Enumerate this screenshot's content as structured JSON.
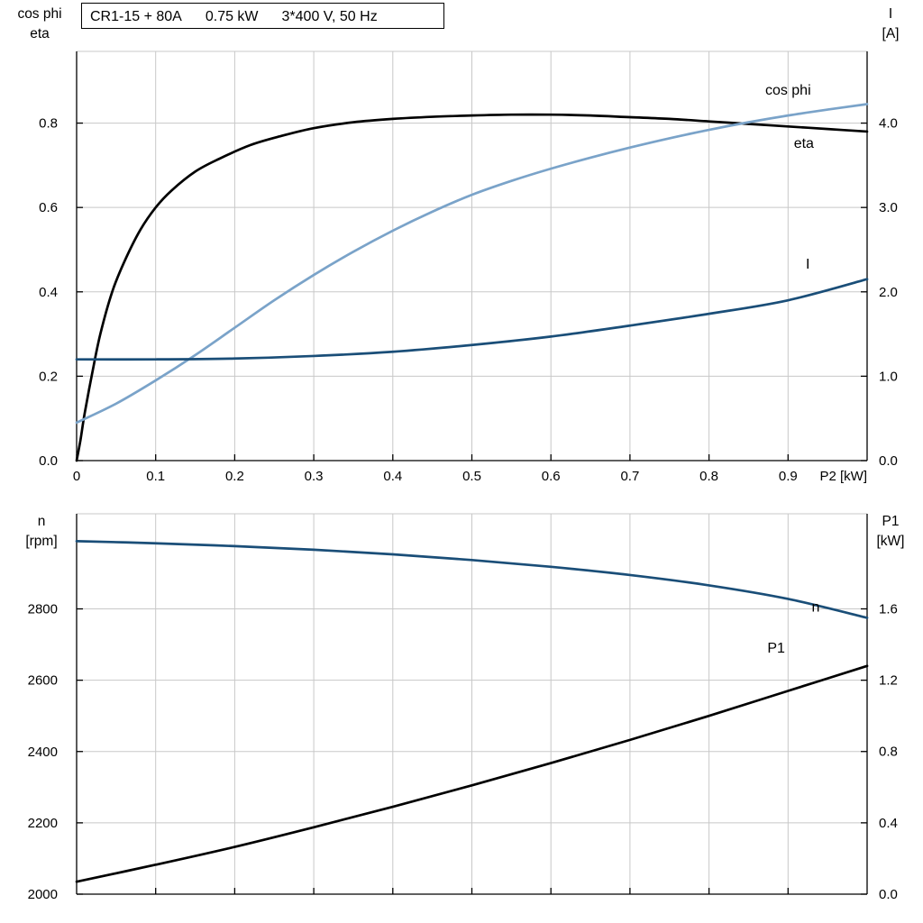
{
  "page": {
    "background": "#ffffff"
  },
  "colors": {
    "grid": "#c8c8c8",
    "axis": "#000000",
    "frame_top": "#c8c8c8",
    "cos_phi_blue": "#7aa3c9",
    "dark_blue": "#1a4e78",
    "black_curve": "#000000"
  },
  "chart_data": [
    {
      "type": "line",
      "title_parts": [
        "CR1-15 + 80A",
        "0.75 kW",
        "3*400 V, 50 Hz"
      ],
      "x_axis": {
        "label": "P2 [kW]",
        "range": [
          0,
          1
        ],
        "ticks": [
          0,
          0.1,
          0.2,
          0.3,
          0.4,
          0.5,
          0.6,
          0.7,
          0.8,
          0.9
        ],
        "tick_labels": [
          "0",
          "0.1",
          "0.2",
          "0.3",
          "0.4",
          "0.5",
          "0.6",
          "0.7",
          "0.8",
          "0.9"
        ]
      },
      "y_left": {
        "title_lines": [
          "cos phi",
          "eta"
        ],
        "range": [
          0,
          0.97
        ],
        "ticks": [
          0,
          0.2,
          0.4,
          0.6,
          0.8
        ],
        "tick_labels": [
          "0.0",
          "0.2",
          "0.4",
          "0.6",
          "0.8"
        ]
      },
      "y_right": {
        "title_lines": [
          "I",
          "[A]"
        ],
        "range": [
          0,
          4.85
        ],
        "ticks": [
          0,
          1,
          2,
          3,
          4
        ],
        "tick_labels": [
          "0.0",
          "1.0",
          "2.0",
          "3.0",
          "4.0"
        ]
      },
      "series": [
        {
          "name": "eta",
          "axis": "left",
          "color": "#000000",
          "width": 2.7,
          "label": "eta",
          "label_at": [
            0.92,
            0.752
          ],
          "points": [
            [
              0,
              0
            ],
            [
              0.005,
              0.05
            ],
            [
              0.01,
              0.11
            ],
            [
              0.02,
              0.21
            ],
            [
              0.03,
              0.3
            ],
            [
              0.045,
              0.4
            ],
            [
              0.06,
              0.47
            ],
            [
              0.08,
              0.545
            ],
            [
              0.1,
              0.6
            ],
            [
              0.12,
              0.64
            ],
            [
              0.15,
              0.685
            ],
            [
              0.18,
              0.715
            ],
            [
              0.22,
              0.748
            ],
            [
              0.26,
              0.77
            ],
            [
              0.3,
              0.788
            ],
            [
              0.35,
              0.802
            ],
            [
              0.4,
              0.81
            ],
            [
              0.45,
              0.815
            ],
            [
              0.5,
              0.818
            ],
            [
              0.55,
              0.82
            ],
            [
              0.6,
              0.82
            ],
            [
              0.65,
              0.818
            ],
            [
              0.7,
              0.814
            ],
            [
              0.75,
              0.81
            ],
            [
              0.8,
              0.804
            ],
            [
              0.85,
              0.798
            ],
            [
              0.9,
              0.792
            ],
            [
              0.95,
              0.786
            ],
            [
              1,
              0.78
            ]
          ]
        },
        {
          "name": "cos phi",
          "axis": "left",
          "color": "#7aa3c9",
          "width": 2.7,
          "label": "cos phi",
          "label_at": [
            0.9,
            0.878
          ],
          "points": [
            [
              0,
              0.09
            ],
            [
              0.05,
              0.135
            ],
            [
              0.1,
              0.19
            ],
            [
              0.15,
              0.25
            ],
            [
              0.2,
              0.315
            ],
            [
              0.25,
              0.38
            ],
            [
              0.3,
              0.44
            ],
            [
              0.35,
              0.495
            ],
            [
              0.4,
              0.545
            ],
            [
              0.45,
              0.59
            ],
            [
              0.5,
              0.63
            ],
            [
              0.55,
              0.663
            ],
            [
              0.6,
              0.692
            ],
            [
              0.65,
              0.718
            ],
            [
              0.7,
              0.742
            ],
            [
              0.75,
              0.764
            ],
            [
              0.8,
              0.784
            ],
            [
              0.85,
              0.802
            ],
            [
              0.9,
              0.818
            ],
            [
              0.95,
              0.832
            ],
            [
              1,
              0.845
            ]
          ]
        },
        {
          "name": "I",
          "axis": "right",
          "color": "#1a4e78",
          "width": 2.7,
          "label": "I",
          "label_at": [
            0.925,
            2.33
          ],
          "points": [
            [
              0,
              1.2
            ],
            [
              0.1,
              1.2
            ],
            [
              0.2,
              1.21
            ],
            [
              0.3,
              1.24
            ],
            [
              0.4,
              1.29
            ],
            [
              0.5,
              1.37
            ],
            [
              0.6,
              1.47
            ],
            [
              0.7,
              1.6
            ],
            [
              0.8,
              1.74
            ],
            [
              0.9,
              1.9
            ],
            [
              1,
              2.15
            ]
          ]
        }
      ]
    },
    {
      "type": "line",
      "title_parts": [],
      "x_axis": {
        "label": "",
        "range": [
          0,
          1
        ],
        "ticks": [
          0.1,
          0.2,
          0.3,
          0.4,
          0.5,
          0.6,
          0.7,
          0.8,
          0.9
        ],
        "tick_labels": []
      },
      "y_left": {
        "title_lines": [
          "n",
          "[rpm]"
        ],
        "range": [
          2000,
          3066.7
        ],
        "ticks": [
          2000,
          2200,
          2400,
          2600,
          2800
        ],
        "tick_labels": [
          "2000",
          "2200",
          "2400",
          "2600",
          "2800"
        ]
      },
      "y_right": {
        "title_lines": [
          "P1",
          "[kW]"
        ],
        "range": [
          0,
          2.1333
        ],
        "ticks": [
          0,
          0.4,
          0.8,
          1.2,
          1.6
        ],
        "tick_labels": [
          "0.0",
          "0.4",
          "0.8",
          "1.2",
          "1.6"
        ]
      },
      "series": [
        {
          "name": "n",
          "axis": "left",
          "color": "#1a4e78",
          "width": 2.7,
          "label": "n",
          "label_at": [
            0.935,
            2805
          ],
          "points": [
            [
              0,
              2990
            ],
            [
              0.1,
              2984
            ],
            [
              0.2,
              2976
            ],
            [
              0.3,
              2966
            ],
            [
              0.4,
              2953
            ],
            [
              0.5,
              2937
            ],
            [
              0.6,
              2918
            ],
            [
              0.7,
              2895
            ],
            [
              0.8,
              2866
            ],
            [
              0.9,
              2828
            ],
            [
              1,
              2775
            ]
          ]
        },
        {
          "name": "P1",
          "axis": "right",
          "color": "#000000",
          "width": 2.7,
          "label": "P1",
          "label_at": [
            0.885,
            1.38
          ],
          "points": [
            [
              0,
              0.07
            ],
            [
              0.1,
              0.165
            ],
            [
              0.2,
              0.265
            ],
            [
              0.3,
              0.375
            ],
            [
              0.4,
              0.49
            ],
            [
              0.5,
              0.61
            ],
            [
              0.6,
              0.735
            ],
            [
              0.7,
              0.865
            ],
            [
              0.8,
              1.0
            ],
            [
              0.9,
              1.14
            ],
            [
              1,
              1.28
            ]
          ]
        }
      ]
    }
  ]
}
